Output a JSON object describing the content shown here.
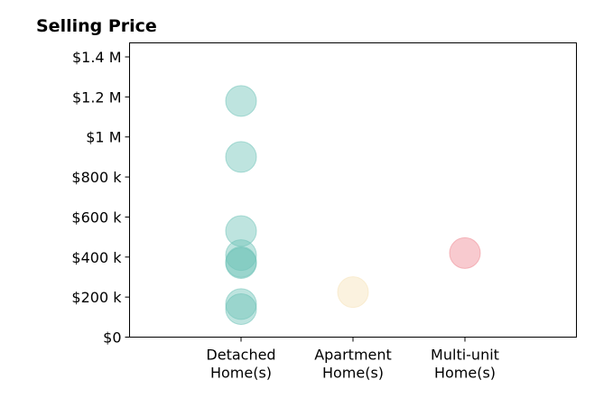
{
  "chart_data": {
    "type": "scatter",
    "title": "Selling Price",
    "categories": [
      "Detached\nHome(s)",
      "Apartment\nHome(s)",
      "Multi-unit\nHome(s)"
    ],
    "y_ticks": [
      {
        "value": 0,
        "label": "$0"
      },
      {
        "value": 200000,
        "label": "$200 k"
      },
      {
        "value": 400000,
        "label": "$400 k"
      },
      {
        "value": 600000,
        "label": "$600 k"
      },
      {
        "value": 800000,
        "label": "$800 k"
      },
      {
        "value": 1000000,
        "label": "$1 M"
      },
      {
        "value": 1200000,
        "label": "$1.2 M"
      },
      {
        "value": 1400000,
        "label": "$1.4 M"
      }
    ],
    "ylim": [
      0,
      1470000
    ],
    "grid": false,
    "series": [
      {
        "category_index": 0,
        "color": "#6fc3b8",
        "values": [
          1180000,
          900000,
          530000,
          410000,
          375000,
          370000,
          165000,
          140000
        ]
      },
      {
        "category_index": 1,
        "color": "#f6e2b8",
        "values": [
          225000
        ]
      },
      {
        "category_index": 2,
        "color": "#ef8a94",
        "values": [
          420000
        ]
      }
    ]
  }
}
